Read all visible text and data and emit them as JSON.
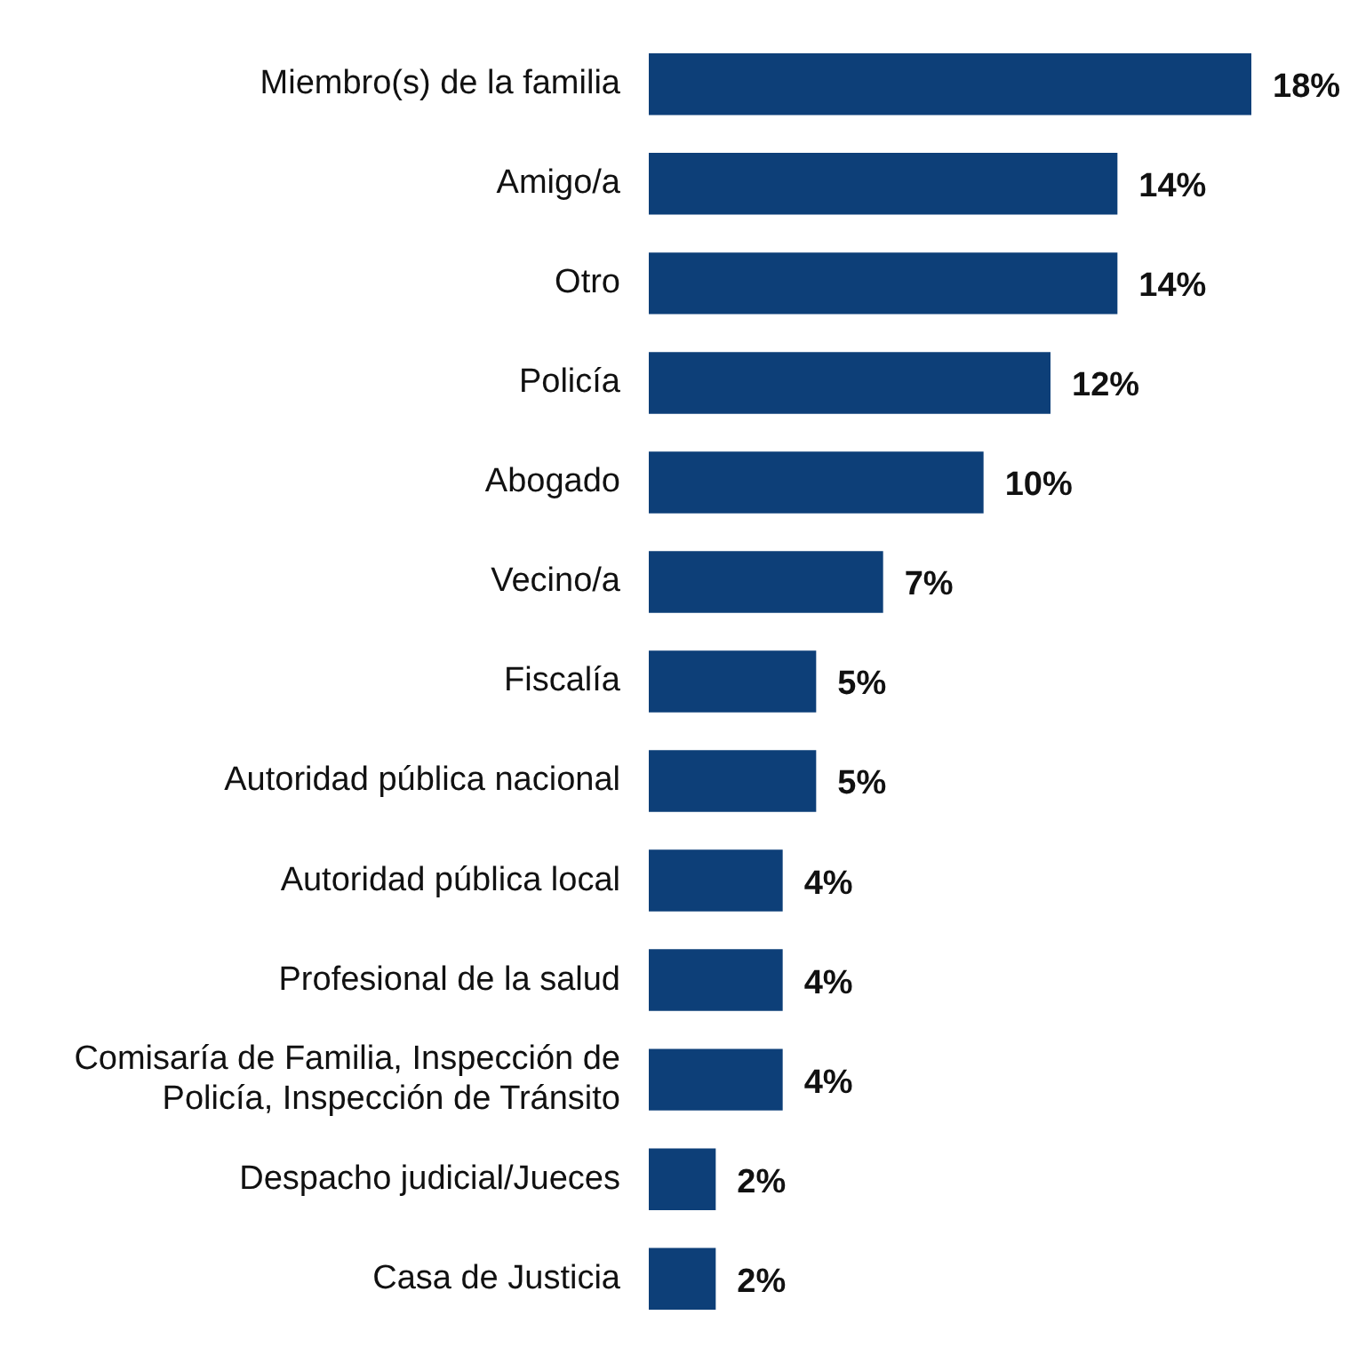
{
  "chart_data": {
    "type": "bar",
    "orientation": "horizontal",
    "categories": [
      "Miembro(s) de la familia",
      "Amigo/a",
      "Otro",
      "Policía",
      "Abogado",
      "Vecino/a",
      "Fiscalía",
      "Autoridad pública nacional",
      "Autoridad pública local",
      "Profesional de la salud",
      "Comisaría de Familia, Inspección de Policía, Inspección de Tránsito",
      "Despacho judicial/Jueces",
      "Casa de Justicia"
    ],
    "values": [
      18,
      14,
      14,
      12,
      10,
      7,
      5,
      5,
      4,
      4,
      4,
      2,
      2
    ],
    "value_labels": [
      "18%",
      "14%",
      "14%",
      "12%",
      "10%",
      "7%",
      "5%",
      "5%",
      "4%",
      "4%",
      "4%",
      "2%",
      "2%"
    ],
    "color": "#0d3f78",
    "legend": false
  }
}
